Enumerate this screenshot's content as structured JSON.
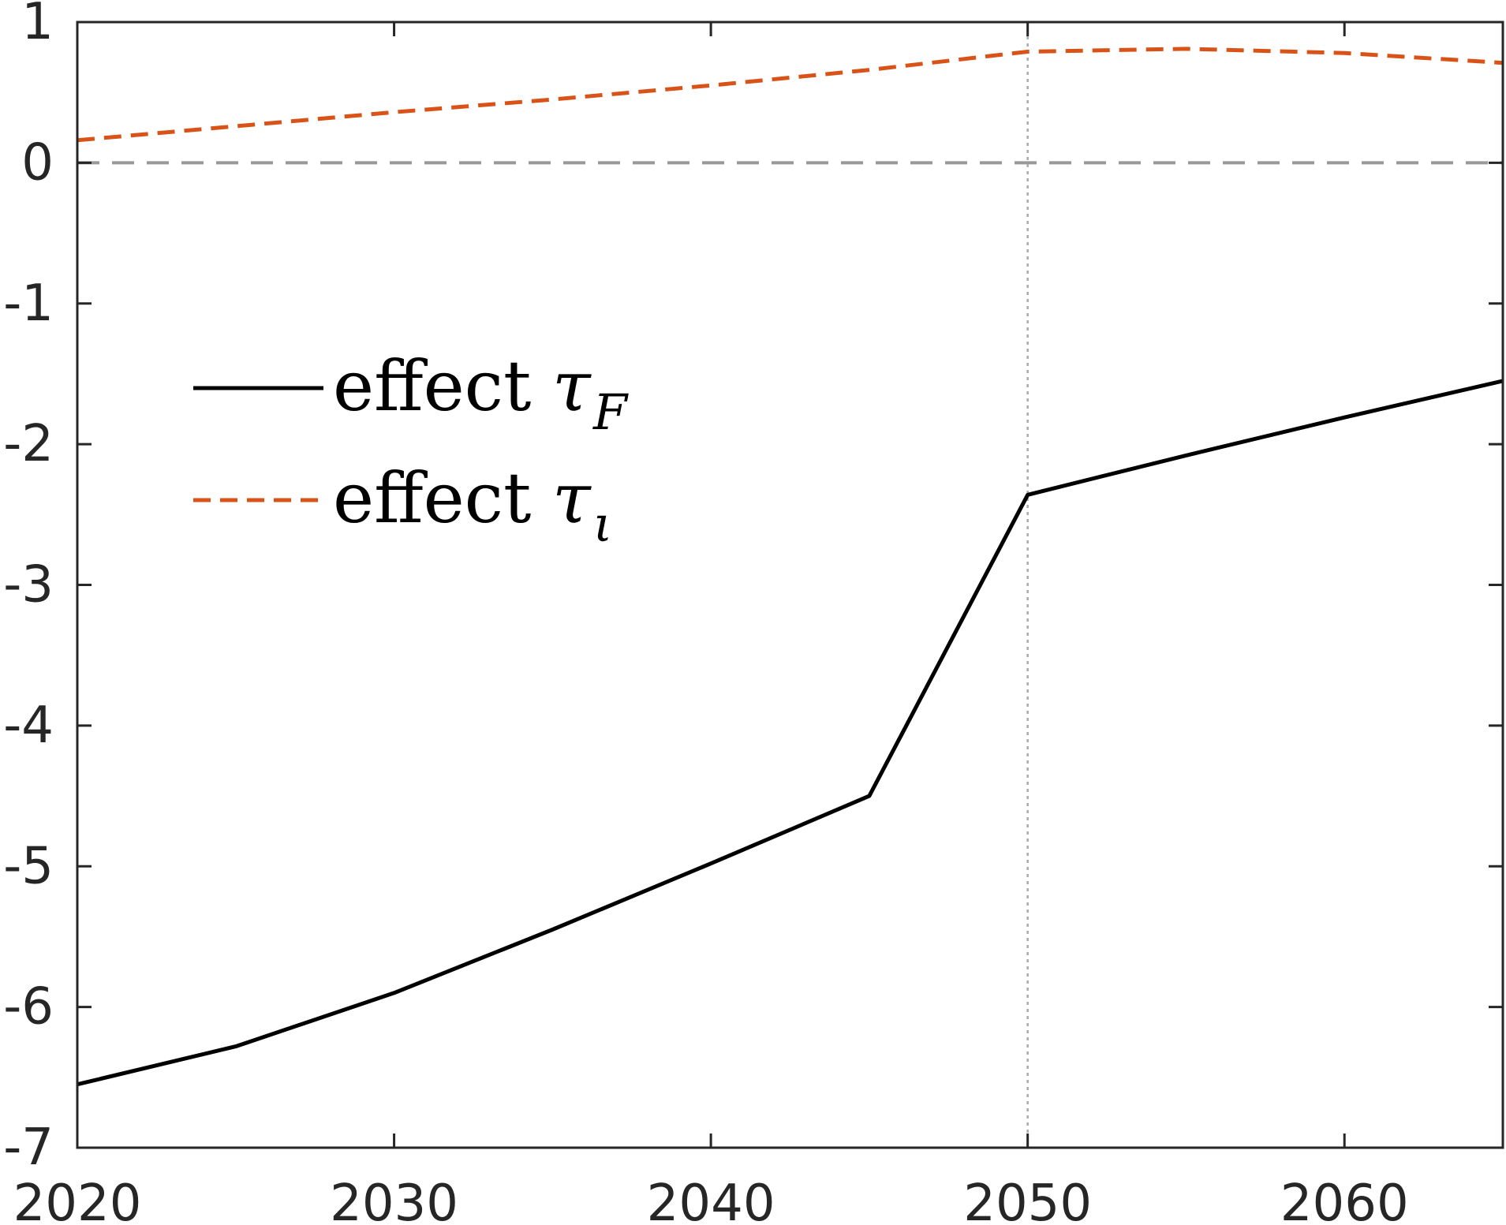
{
  "chart_data": {
    "type": "line",
    "xlim": [
      2020,
      2065
    ],
    "ylim": [
      -7,
      1
    ],
    "x_ticks": [
      {
        "value": 2020,
        "label": "2020"
      },
      {
        "value": 2030,
        "label": "2030"
      },
      {
        "value": 2040,
        "label": "2040"
      },
      {
        "value": 2050,
        "label": "2050"
      },
      {
        "value": 2060,
        "label": "2060"
      }
    ],
    "y_ticks": [
      {
        "value": 1,
        "label": "1"
      },
      {
        "value": 0,
        "label": "0"
      },
      {
        "value": -1,
        "label": "-1"
      },
      {
        "value": -2,
        "label": "-2"
      },
      {
        "value": -3,
        "label": "-3"
      },
      {
        "value": -4,
        "label": "-4"
      },
      {
        "value": -5,
        "label": "-5"
      },
      {
        "value": -6,
        "label": "-6"
      },
      {
        "value": -7,
        "label": "-7"
      }
    ],
    "grid": false,
    "legend_position": "left",
    "reference_lines": [
      {
        "orientation": "horizontal",
        "value": 0,
        "style": "dashed",
        "color": "#999999"
      },
      {
        "orientation": "vertical",
        "value": 2050,
        "style": "dotted",
        "color": "#aaaaaa"
      }
    ],
    "series": [
      {
        "name": "effect τF",
        "legend_text": "effect",
        "legend_symbol": "τ",
        "legend_subscript": "F",
        "color": "#000000",
        "style": "solid",
        "x": [
          2020,
          2025,
          2030,
          2035,
          2040,
          2045,
          2050,
          2055,
          2060,
          2065
        ],
        "y": [
          -6.55,
          -6.28,
          -5.9,
          -5.45,
          -4.98,
          -4.5,
          -2.36,
          -2.08,
          -1.81,
          -1.55
        ]
      },
      {
        "name": "effect τι",
        "legend_text": "effect",
        "legend_symbol": "τ",
        "legend_subscript": "ι",
        "color": "#D95319",
        "style": "dashed",
        "x": [
          2020,
          2025,
          2030,
          2035,
          2040,
          2045,
          2050,
          2055,
          2060,
          2065
        ],
        "y": [
          0.16,
          0.26,
          0.36,
          0.45,
          0.55,
          0.66,
          0.79,
          0.81,
          0.78,
          0.71
        ]
      }
    ]
  }
}
